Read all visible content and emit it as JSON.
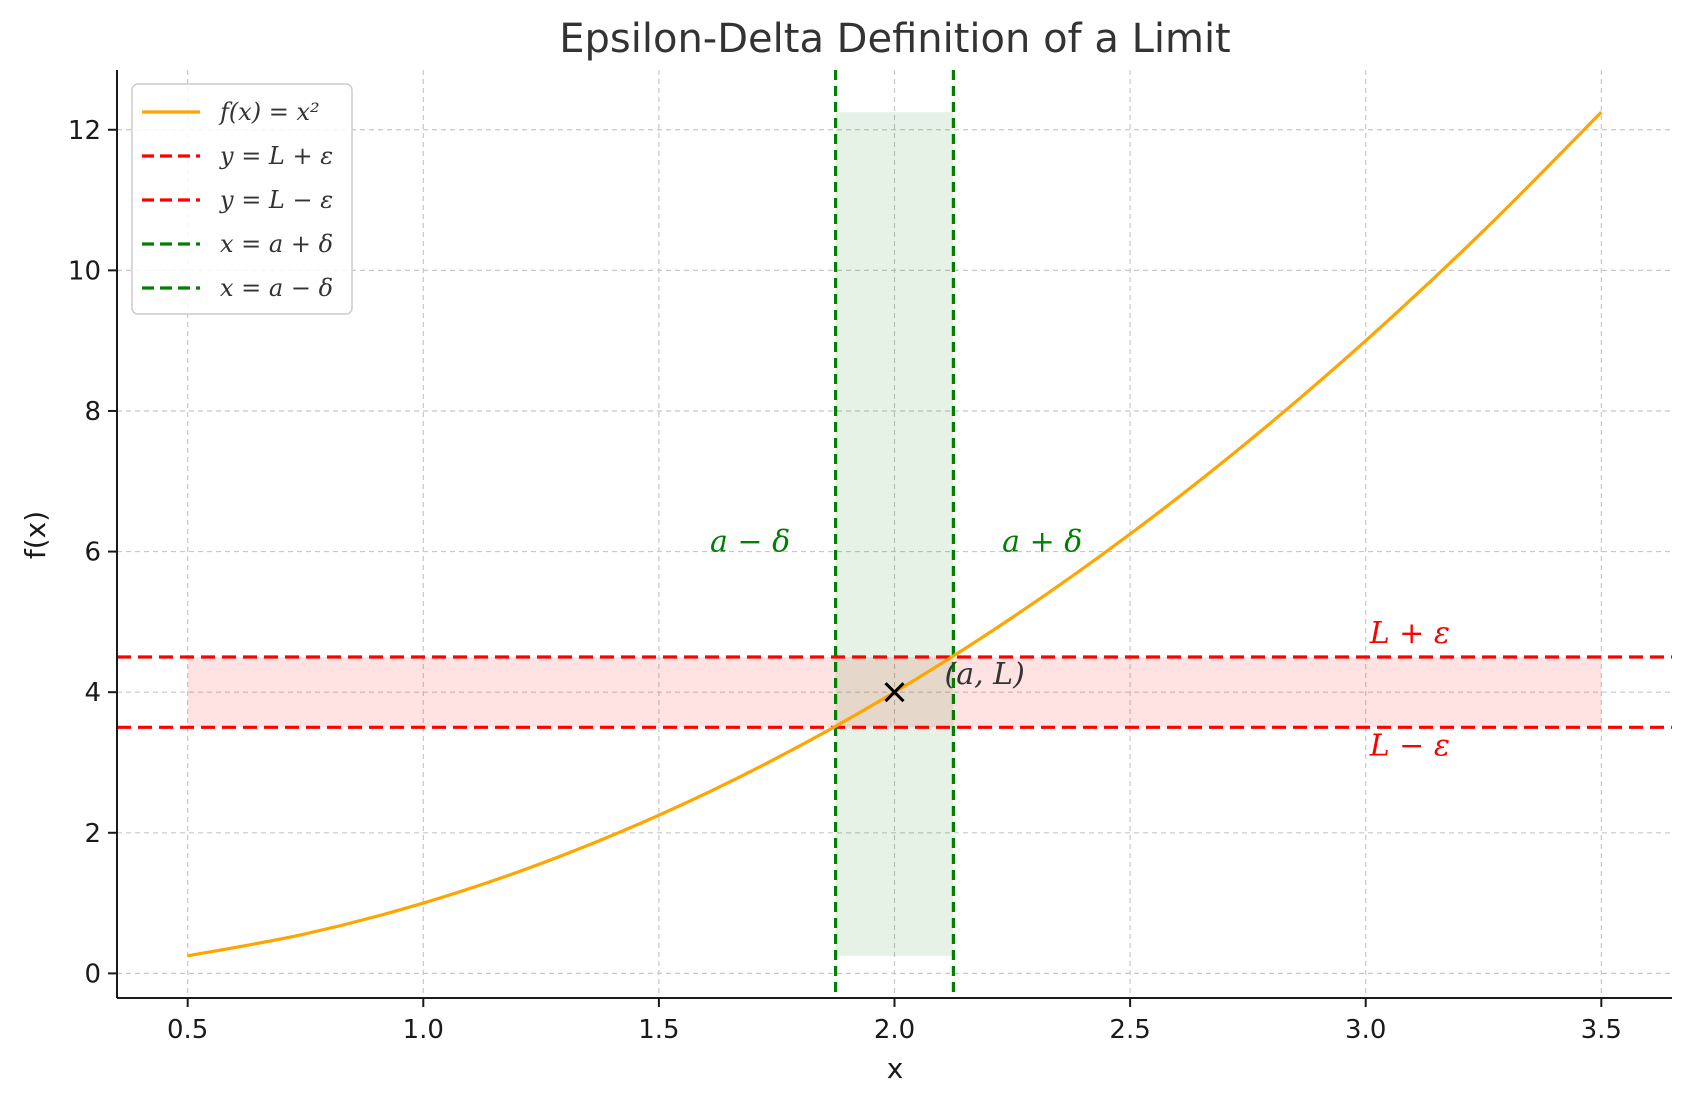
{
  "chart_data": {
    "type": "line",
    "title": "Epsilon-Delta Definition of a Limit",
    "xlabel": "x",
    "ylabel": "f(x)",
    "xlim": [
      0.35,
      3.65
    ],
    "ylim": [
      -0.35,
      12.85
    ],
    "grid": true,
    "legend_placement": "top-left",
    "xticks": [
      0.5,
      1.0,
      1.5,
      2.0,
      2.5,
      3.0,
      3.5
    ],
    "xtick_labels": [
      "0.5",
      "1.0",
      "1.5",
      "2.0",
      "2.5",
      "3.0",
      "3.5"
    ],
    "yticks": [
      0,
      2,
      4,
      6,
      8,
      10,
      12
    ],
    "ytick_labels": [
      "0",
      "2",
      "4",
      "6",
      "8",
      "10",
      "12"
    ],
    "curve": {
      "name": "f(x) = x²",
      "color": "#FFA500",
      "x": [
        0.5,
        0.75,
        1.0,
        1.25,
        1.5,
        1.75,
        2.0,
        2.25,
        2.5,
        2.75,
        3.0,
        3.25,
        3.5
      ],
      "y": [
        0.25,
        0.5625,
        1.0,
        1.5625,
        2.25,
        3.0625,
        4.0,
        5.0625,
        6.25,
        7.5625,
        9.0,
        10.5625,
        12.25
      ]
    },
    "a": 2.0,
    "L": 4.0,
    "epsilon": 0.5,
    "delta": 0.125,
    "horizontal_lines": [
      {
        "name": "y = L + ε",
        "y": 4.5,
        "color": "#FF0000"
      },
      {
        "name": "y = L − ε",
        "y": 3.5,
        "color": "#FF0000"
      }
    ],
    "vertical_lines": [
      {
        "name": "x = a + δ",
        "x": 2.125,
        "color": "#008000"
      },
      {
        "name": "x = a − δ",
        "x": 1.875,
        "color": "#008000"
      }
    ],
    "epsilon_band": {
      "x": [
        0.5,
        3.5
      ],
      "y": [
        3.5,
        4.5
      ],
      "color": "#FF0000",
      "opacity": 0.11
    },
    "delta_band": {
      "x": [
        1.875,
        2.125
      ],
      "y": [
        0.25,
        12.25
      ],
      "color": "#008000",
      "opacity": 0.1
    },
    "point": {
      "x": 2.0,
      "y": 4.0,
      "label": "(a, L)",
      "marker": "x"
    },
    "annotations": [
      {
        "text": "a − δ",
        "x": 1.6,
        "y": 6.0,
        "color": "#008000"
      },
      {
        "text": "a + δ",
        "x": 2.22,
        "y": 6.0,
        "color": "#008000"
      },
      {
        "text": "L + ε",
        "x": 3.0,
        "y": 4.7,
        "color": "#FF0000"
      },
      {
        "text": "L − ε",
        "x": 3.0,
        "y": 3.1,
        "color": "#FF0000"
      }
    ],
    "legend": [
      {
        "label": "f(x) = x²",
        "color": "#FFA500",
        "style": "solid"
      },
      {
        "label": "y = L + ε",
        "color": "#FF0000",
        "style": "dashed"
      },
      {
        "label": "y = L − ε",
        "color": "#FF0000",
        "style": "dashed"
      },
      {
        "label": "x = a + δ",
        "color": "#008000",
        "style": "dashed"
      },
      {
        "label": "x = a − δ",
        "color": "#008000",
        "style": "dashed"
      }
    ]
  }
}
